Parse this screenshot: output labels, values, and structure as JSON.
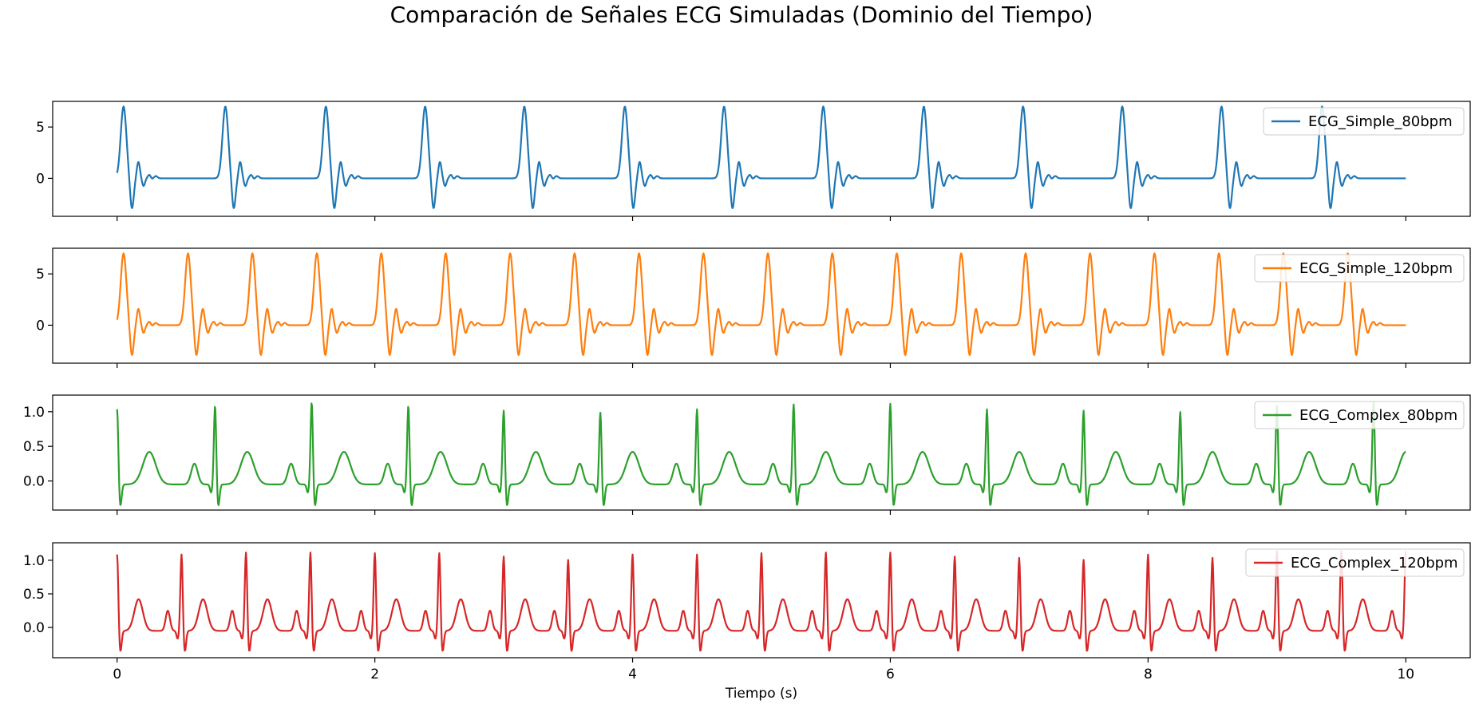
{
  "figure": {
    "title": "Comparación de Señales ECG Simuladas (Dominio del Tiempo)",
    "xlabel": "Tiempo (s)"
  },
  "chart_data": [
    {
      "type": "line",
      "name": "ECG_Simple_80bpm",
      "color": "#1f77b4",
      "legend_loc": "upper right",
      "signal_model": "simple",
      "heart_rate_bpm": 80,
      "x_range": [
        0,
        10
      ],
      "xlim": [
        -0.5,
        10.5
      ],
      "ylim": [
        -3.7,
        7.5
      ],
      "yticks": [
        0,
        5
      ],
      "ytick_labels": [
        "0",
        "5"
      ],
      "xticks": [
        0,
        2,
        4,
        6,
        8,
        10
      ],
      "xtick_labels": [
        "0",
        "2",
        "4",
        "6",
        "8",
        "10"
      ],
      "beat_times": [
        0.05,
        0.84,
        1.62,
        2.39,
        3.16,
        3.94,
        4.71,
        5.48,
        6.26,
        7.03,
        7.8,
        8.57,
        9.35
      ],
      "peak_amplitude": 7.0,
      "trough_amplitude": -3.0,
      "baseline": 0.0
    },
    {
      "type": "line",
      "name": "ECG_Simple_120bpm",
      "color": "#ff7f0e",
      "legend_loc": "upper right",
      "signal_model": "simple",
      "heart_rate_bpm": 120,
      "x_range": [
        0,
        10
      ],
      "xlim": [
        -0.5,
        10.5
      ],
      "ylim": [
        -3.7,
        7.5
      ],
      "yticks": [
        0,
        5
      ],
      "ytick_labels": [
        "0",
        "5"
      ],
      "xticks": [
        0,
        2,
        4,
        6,
        8,
        10
      ],
      "xtick_labels": [
        "0",
        "2",
        "4",
        "6",
        "8",
        "10"
      ],
      "beat_times": [
        0.05,
        0.55,
        1.05,
        1.55,
        2.05,
        2.55,
        3.05,
        3.55,
        4.05,
        4.55,
        5.05,
        5.55,
        6.05,
        6.55,
        7.05,
        7.55,
        8.05,
        8.55,
        9.05,
        9.55
      ],
      "peak_amplitude": 7.0,
      "trough_amplitude": -3.0,
      "baseline": 0.0
    },
    {
      "type": "line",
      "name": "ECG_Complex_80bpm",
      "color": "#2ca02c",
      "legend_loc": "upper right",
      "signal_model": "complex (P-QRS-T)",
      "heart_rate_bpm": 80,
      "x_range": [
        0,
        10
      ],
      "xlim": [
        -0.5,
        10.5
      ],
      "ylim": [
        -0.42,
        1.24
      ],
      "yticks": [
        0.0,
        0.5,
        1.0
      ],
      "ytick_labels": [
        "0.0",
        "0.5",
        "1.0"
      ],
      "xticks": [
        0,
        2,
        4,
        6,
        8,
        10
      ],
      "xtick_labels": [
        "0",
        "2",
        "4",
        "6",
        "8",
        "10"
      ],
      "beat_times": [
        0.0,
        0.76,
        1.51,
        2.26,
        3.0,
        3.75,
        4.5,
        5.25,
        6.0,
        6.75,
        7.5,
        8.25,
        9.0,
        9.75
      ],
      "r_peak_values": [
        1.1,
        1.15,
        1.2,
        1.15,
        1.08,
        1.05,
        1.1,
        1.17,
        1.18,
        1.1,
        1.08,
        1.06,
        1.15,
        1.2
      ],
      "t_wave_peak": 0.47,
      "p_wave_peak": 0.3,
      "s_trough": -0.3
    },
    {
      "type": "line",
      "name": "ECG_Complex_120bpm",
      "color": "#d62728",
      "legend_loc": "upper right",
      "signal_model": "complex (P-QRS-T)",
      "heart_rate_bpm": 120,
      "x_range": [
        0,
        10
      ],
      "xlim": [
        -0.5,
        10.5
      ],
      "ylim": [
        -0.45,
        1.26
      ],
      "yticks": [
        0.0,
        0.5,
        1.0
      ],
      "ytick_labels": [
        "0.0",
        "0.5",
        "1.0"
      ],
      "xticks": [
        0,
        2,
        4,
        6,
        8,
        10
      ],
      "xtick_labels": [
        "0",
        "2",
        "4",
        "6",
        "8",
        "10"
      ],
      "beat_times": [
        0.0,
        0.5,
        1.0,
        1.5,
        2.0,
        2.5,
        3.0,
        3.5,
        4.0,
        4.5,
        5.0,
        5.5,
        6.0,
        6.5,
        7.0,
        7.5,
        8.0,
        8.5,
        9.0,
        9.5,
        10.0
      ],
      "r_peak_values": [
        1.15,
        1.15,
        1.18,
        1.18,
        1.17,
        1.17,
        1.12,
        1.07,
        1.15,
        1.15,
        1.17,
        1.18,
        1.18,
        1.12,
        1.1,
        1.07,
        1.15,
        1.1,
        1.2,
        1.2,
        1.2
      ],
      "t_wave_peak": 0.47,
      "p_wave_peak": 0.3,
      "s_trough": -0.32
    }
  ]
}
